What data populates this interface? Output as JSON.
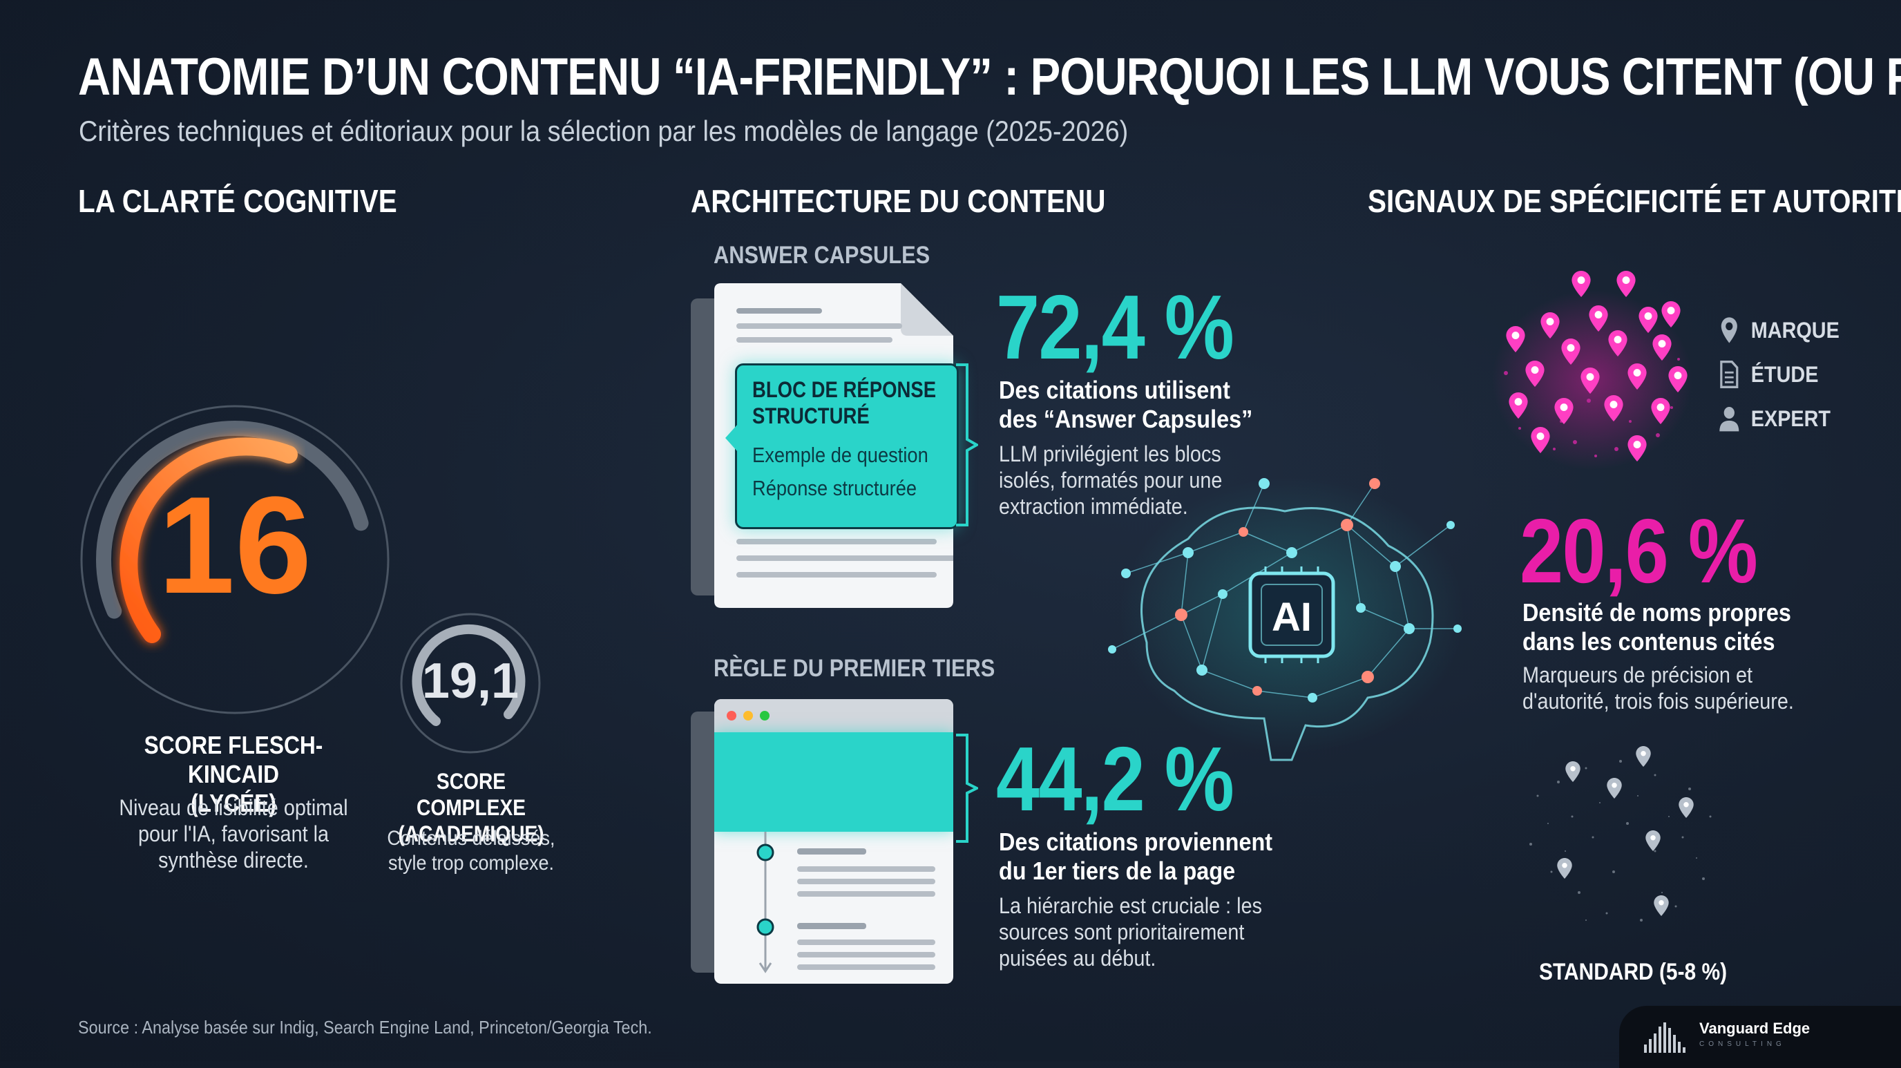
{
  "header": {
    "title": "ANATOMIE D’UN CONTENU “IA-FRIENDLY” : POURQUOI LES LLM VOUS CITENT (OU PAS)",
    "subtitle": "Critères techniques et éditoriaux pour la sélection par les modèles de langage (2025-2026)"
  },
  "clarity": {
    "heading": "LA CLARTÉ COGNITIVE",
    "main_gauge": {
      "value": "16",
      "label_line1": "SCORE FLESCH-KINCAID",
      "label_line2": "(LYCÉE)",
      "desc_line1": "Niveau de lisibilité optimal",
      "desc_line2": "pour l'IA, favorisant la",
      "desc_line3": "synthèse directe.",
      "color": "#ff7a1f"
    },
    "small_gauge": {
      "value": "19,1",
      "label_line1": "SCORE COMPLEXE",
      "label_line2": "(ACADEMIQUE)",
      "desc_line1": "Contenus délaissés,",
      "desc_line2": "style trop complexe."
    }
  },
  "architecture": {
    "heading": "ARCHITECTURE DU CONTENU",
    "capsules": {
      "subheading": "ANSWER CAPSULES",
      "block_title_line1": "BLOC DE RÉPONSE",
      "block_title_line2": "STRUCTURÉ",
      "block_line1": "Exemple de question",
      "block_line2": "Réponse structurée",
      "stat": "72,4 %",
      "stat_label_line1": "Des citations utilisent",
      "stat_label_line2": "des “Answer Capsules”",
      "desc_line1": "LLM privilégient les blocs",
      "desc_line2": "isolés, formatés pour une",
      "desc_line3": "extraction immédiate."
    },
    "first_third": {
      "subheading": "RÈGLE DU PREMIER TIERS",
      "stat": "44,2 %",
      "stat_label_line1": "Des citations proviennent",
      "stat_label_line2": "du 1er tiers de la page",
      "desc_line1": "La hiérarchie est cruciale : les",
      "desc_line2": "sources sont prioritairement",
      "desc_line3": "puisées au début."
    },
    "ai_chip": "AI",
    "accent": "#2ad4c9"
  },
  "signals": {
    "heading": "SIGNAUX DE SPÉCIFICITÉ ET AUTORITÉ",
    "legend": [
      {
        "icon": "map-pin-icon",
        "label": "MARQUE"
      },
      {
        "icon": "document-icon",
        "label": "ÉTUDE"
      },
      {
        "icon": "user-icon",
        "label": "EXPERT"
      }
    ],
    "stat": "20,6 %",
    "stat_label_line1": "Densité de noms propres",
    "stat_label_line2": "dans les contenus cités",
    "desc_line1": "Marqueurs de précision et",
    "desc_line2": "d'autorité, trois fois supérieure.",
    "standard_label": "STANDARD (5-8 %)",
    "accent": "#e91ea8"
  },
  "footer": {
    "source": "Source : Analyse basée sur Indig, Search Engine Land, Princeton/Georgia Tech.",
    "brand_name": "Vanguard Edge",
    "brand_tag": "CONSULTING"
  }
}
